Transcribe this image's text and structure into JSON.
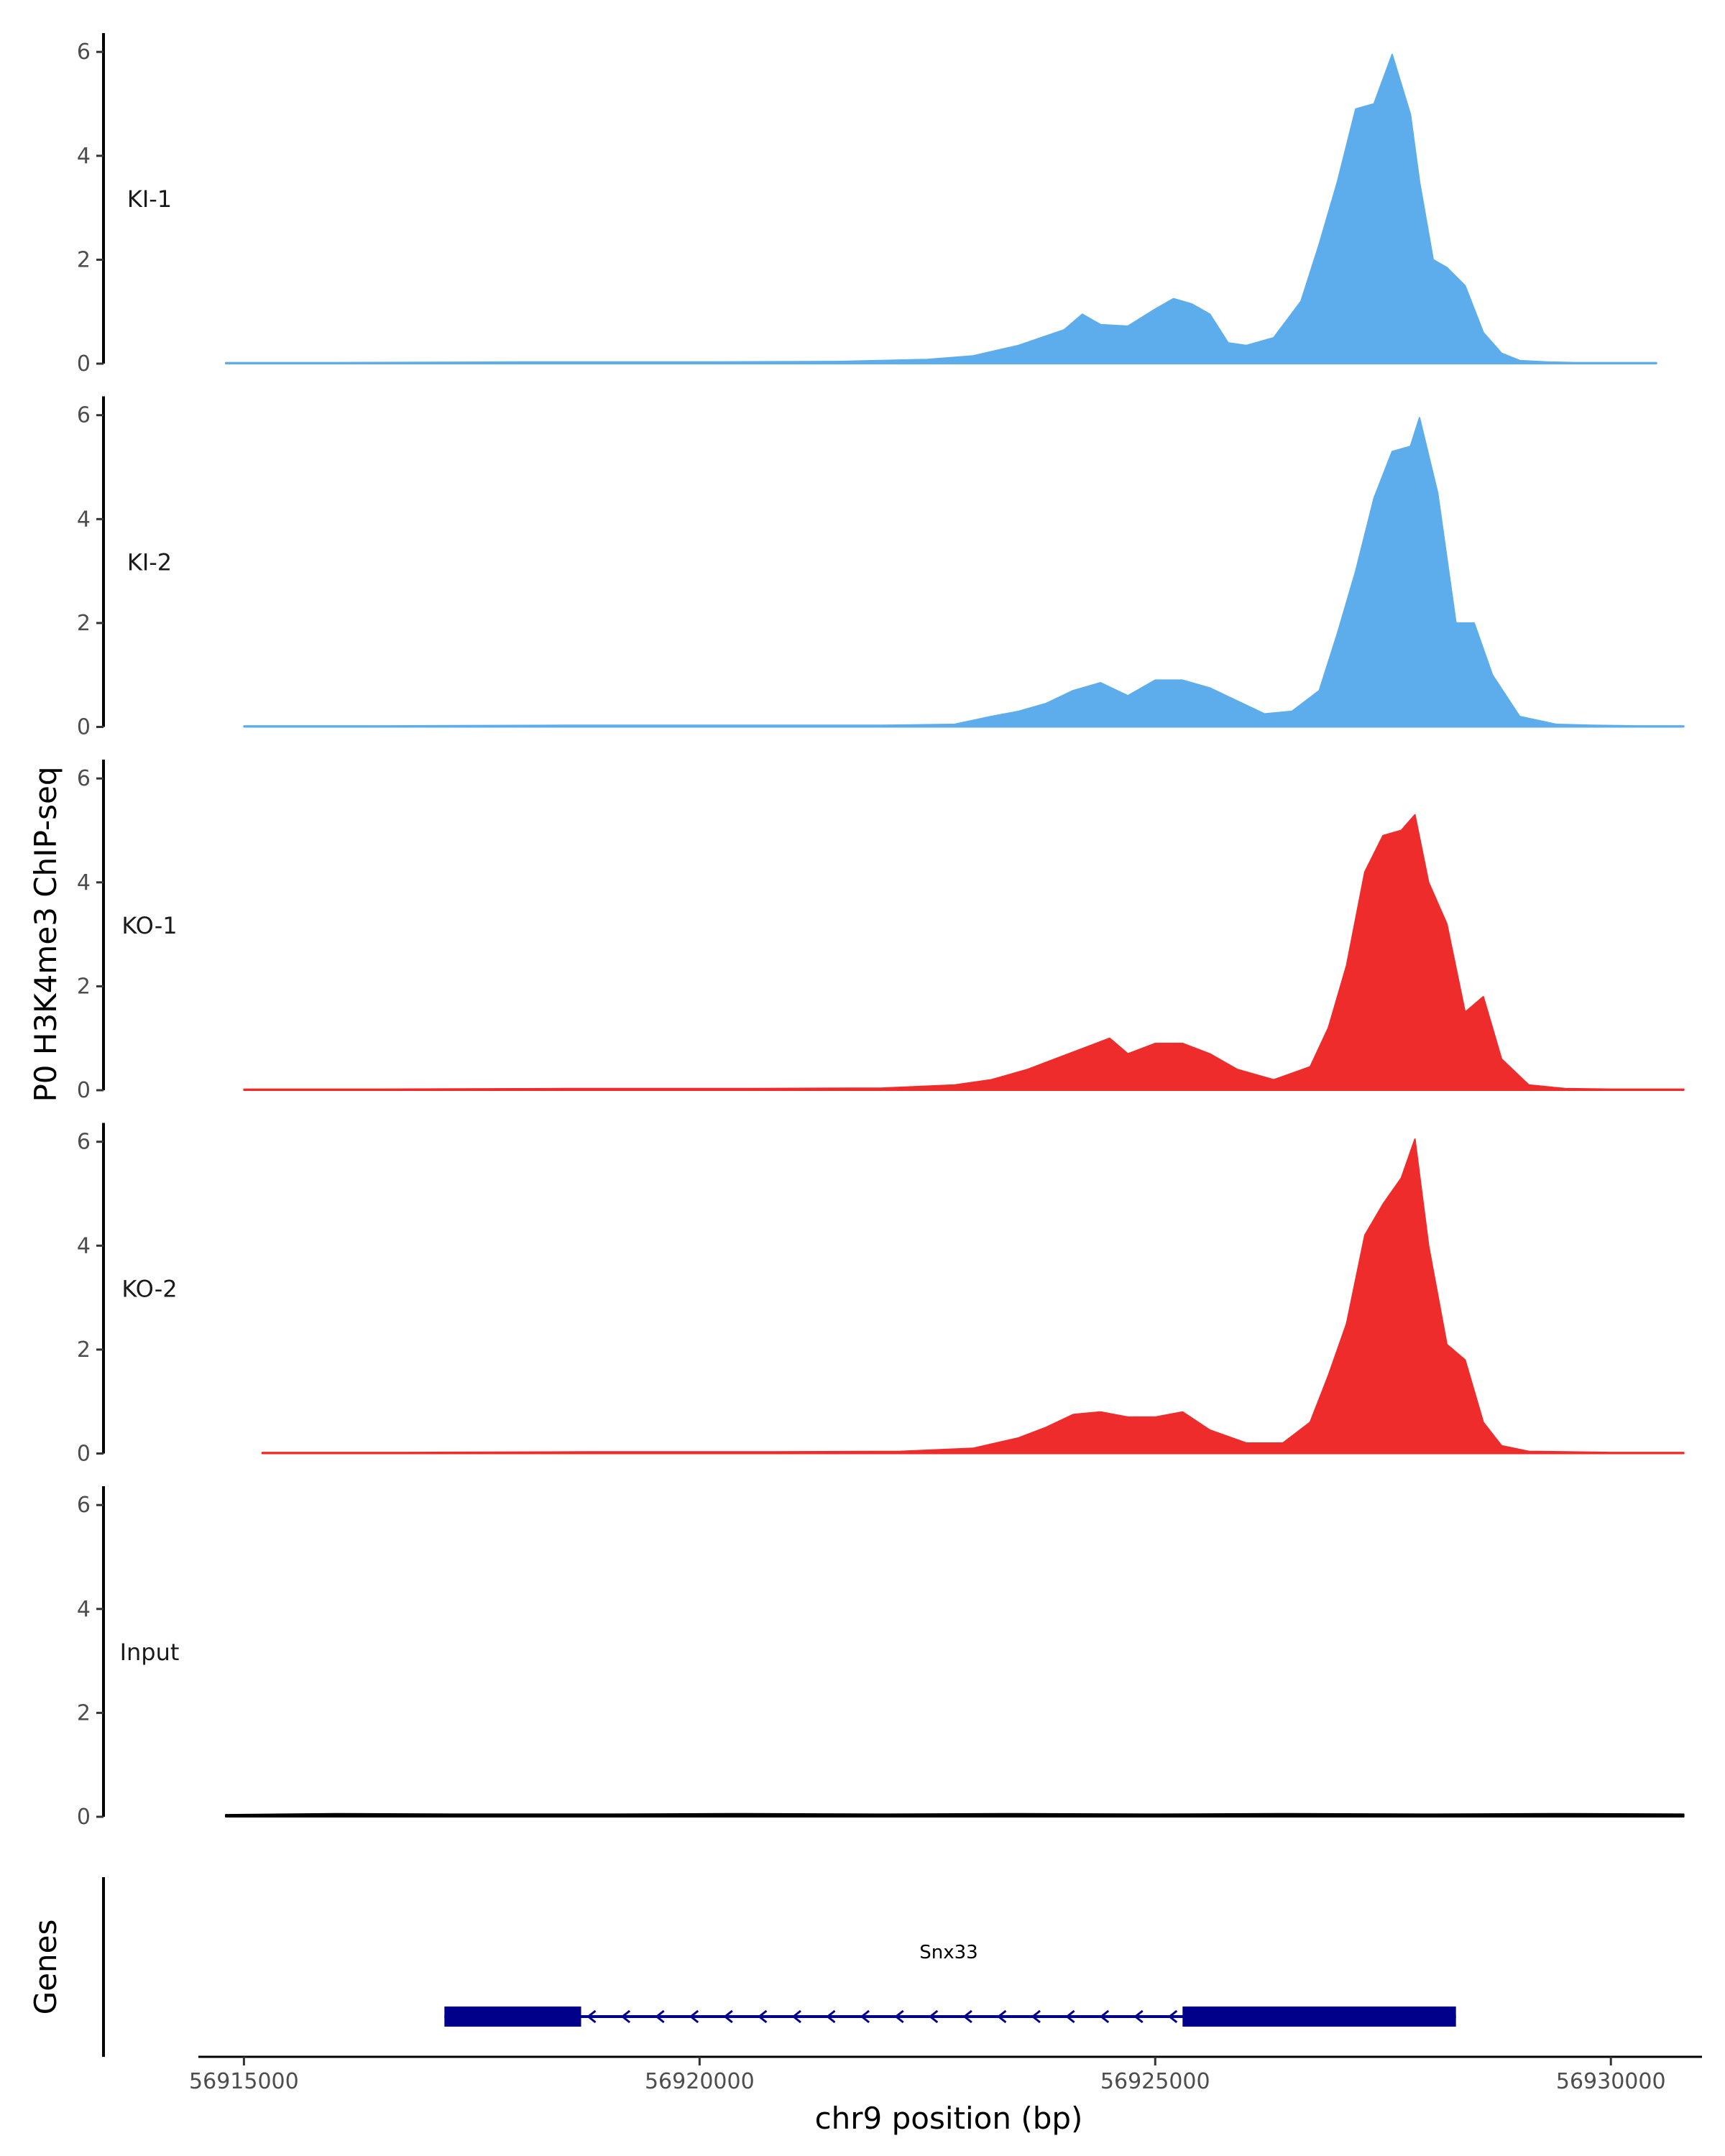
{
  "chart_data": {
    "type": "area",
    "ylabel": "P0 H3K4me3 ChIP-seq",
    "xlabel": "chr9 position (bp)",
    "genes_label": "Genes",
    "xlim": [
      56914500,
      56931000
    ],
    "ylim": [
      0,
      6.3
    ],
    "x_ticks": [
      56915000,
      56920000,
      56925000,
      56930000
    ],
    "x_tick_labels": [
      "56915000",
      "56920000",
      "56925000",
      "56930000"
    ],
    "y_ticks": [
      0,
      2,
      4,
      6
    ],
    "y_tick_labels": [
      "0",
      "2",
      "4",
      "6"
    ],
    "tracks": [
      {
        "name": "KI-1",
        "color": "#5DADEC",
        "x": [
          56914800,
          56916000,
          56918000,
          56920000,
          56921500,
          56922500,
          56923000,
          56923500,
          56924000,
          56924200,
          56924400,
          56924700,
          56925000,
          56925200,
          56925400,
          56925600,
          56925800,
          56926000,
          56926300,
          56926600,
          56926800,
          56927000,
          56927200,
          56927400,
          56927600,
          56927800,
          56927900,
          56928050,
          56928200,
          56928400,
          56928600,
          56928800,
          56929000,
          56929300,
          56929600,
          56930000,
          56930500
        ],
        "values": [
          0.02,
          0.02,
          0.03,
          0.03,
          0.04,
          0.08,
          0.15,
          0.35,
          0.65,
          0.95,
          0.75,
          0.72,
          1.05,
          1.25,
          1.15,
          0.95,
          0.4,
          0.35,
          0.5,
          1.2,
          2.3,
          3.5,
          4.9,
          5.0,
          5.95,
          4.8,
          3.5,
          2.0,
          1.85,
          1.5,
          0.6,
          0.2,
          0.06,
          0.03,
          0.02,
          0.02,
          0.02
        ]
      },
      {
        "name": "KI-2",
        "color": "#5DADEC",
        "x": [
          56915000,
          56916500,
          56918500,
          56920500,
          56922000,
          56922800,
          56923200,
          56923500,
          56923800,
          56924100,
          56924400,
          56924700,
          56925000,
          56925300,
          56925600,
          56925900,
          56926200,
          56926500,
          56926800,
          56927000,
          56927200,
          56927400,
          56927600,
          56927800,
          56927900,
          56928100,
          56928300,
          56928500,
          56928700,
          56929000,
          56929400,
          56929800,
          56930300,
          56930800
        ],
        "values": [
          0.02,
          0.02,
          0.03,
          0.03,
          0.03,
          0.05,
          0.2,
          0.3,
          0.45,
          0.7,
          0.85,
          0.6,
          0.9,
          0.9,
          0.75,
          0.5,
          0.25,
          0.3,
          0.7,
          1.8,
          3.0,
          4.4,
          5.3,
          5.4,
          5.95,
          4.5,
          2.0,
          2.0,
          1.0,
          0.2,
          0.05,
          0.03,
          0.02,
          0.02
        ]
      },
      {
        "name": "KO-1",
        "color": "#EE2C2C",
        "x": [
          56915000,
          56916500,
          56918500,
          56920500,
          56922000,
          56922800,
          56923200,
          56923600,
          56923900,
          56924200,
          56924500,
          56924700,
          56925000,
          56925300,
          56925600,
          56925900,
          56926300,
          56926700,
          56926900,
          56927100,
          56927300,
          56927500,
          56927700,
          56927850,
          56928000,
          56928200,
          56928400,
          56928600,
          56928800,
          56929100,
          56929500,
          56930000,
          56930800
        ],
        "values": [
          0.02,
          0.02,
          0.03,
          0.03,
          0.04,
          0.1,
          0.2,
          0.4,
          0.6,
          0.8,
          1.0,
          0.7,
          0.9,
          0.9,
          0.7,
          0.4,
          0.2,
          0.45,
          1.2,
          2.4,
          4.2,
          4.9,
          5.0,
          5.3,
          4.0,
          3.2,
          1.5,
          1.8,
          0.6,
          0.1,
          0.03,
          0.02,
          0.02
        ]
      },
      {
        "name": "KO-2",
        "color": "#EE2C2C",
        "x": [
          56915200,
          56916800,
          56918800,
          56920800,
          56922200,
          56923000,
          56923500,
          56923800,
          56924100,
          56924400,
          56924700,
          56925000,
          56925300,
          56925600,
          56926000,
          56926400,
          56926700,
          56926900,
          56927100,
          56927300,
          56927500,
          56927700,
          56927850,
          56928000,
          56928200,
          56928400,
          56928600,
          56928800,
          56929100,
          56929500,
          56930000,
          56930800
        ],
        "values": [
          0.02,
          0.02,
          0.03,
          0.03,
          0.04,
          0.1,
          0.3,
          0.5,
          0.75,
          0.8,
          0.7,
          0.7,
          0.8,
          0.45,
          0.2,
          0.2,
          0.6,
          1.5,
          2.5,
          4.2,
          4.8,
          5.3,
          6.05,
          4.0,
          2.1,
          1.8,
          0.6,
          0.15,
          0.04,
          0.03,
          0.02,
          0.02
        ]
      },
      {
        "name": "Input",
        "color": "#000000",
        "x": [
          56914800,
          56916000,
          56917500,
          56919000,
          56920500,
          56922000,
          56923500,
          56925000,
          56926500,
          56928000,
          56929500,
          56930800
        ],
        "values": [
          0.04,
          0.06,
          0.05,
          0.05,
          0.06,
          0.05,
          0.06,
          0.05,
          0.06,
          0.05,
          0.06,
          0.05
        ]
      }
    ],
    "gene": {
      "name": "Snx33",
      "color": "#00008B",
      "start": 56917200,
      "end": 56928300,
      "strand": "-",
      "exons": [
        [
          56917200,
          56918700
        ],
        [
          56925300,
          56928300
        ]
      ]
    }
  }
}
